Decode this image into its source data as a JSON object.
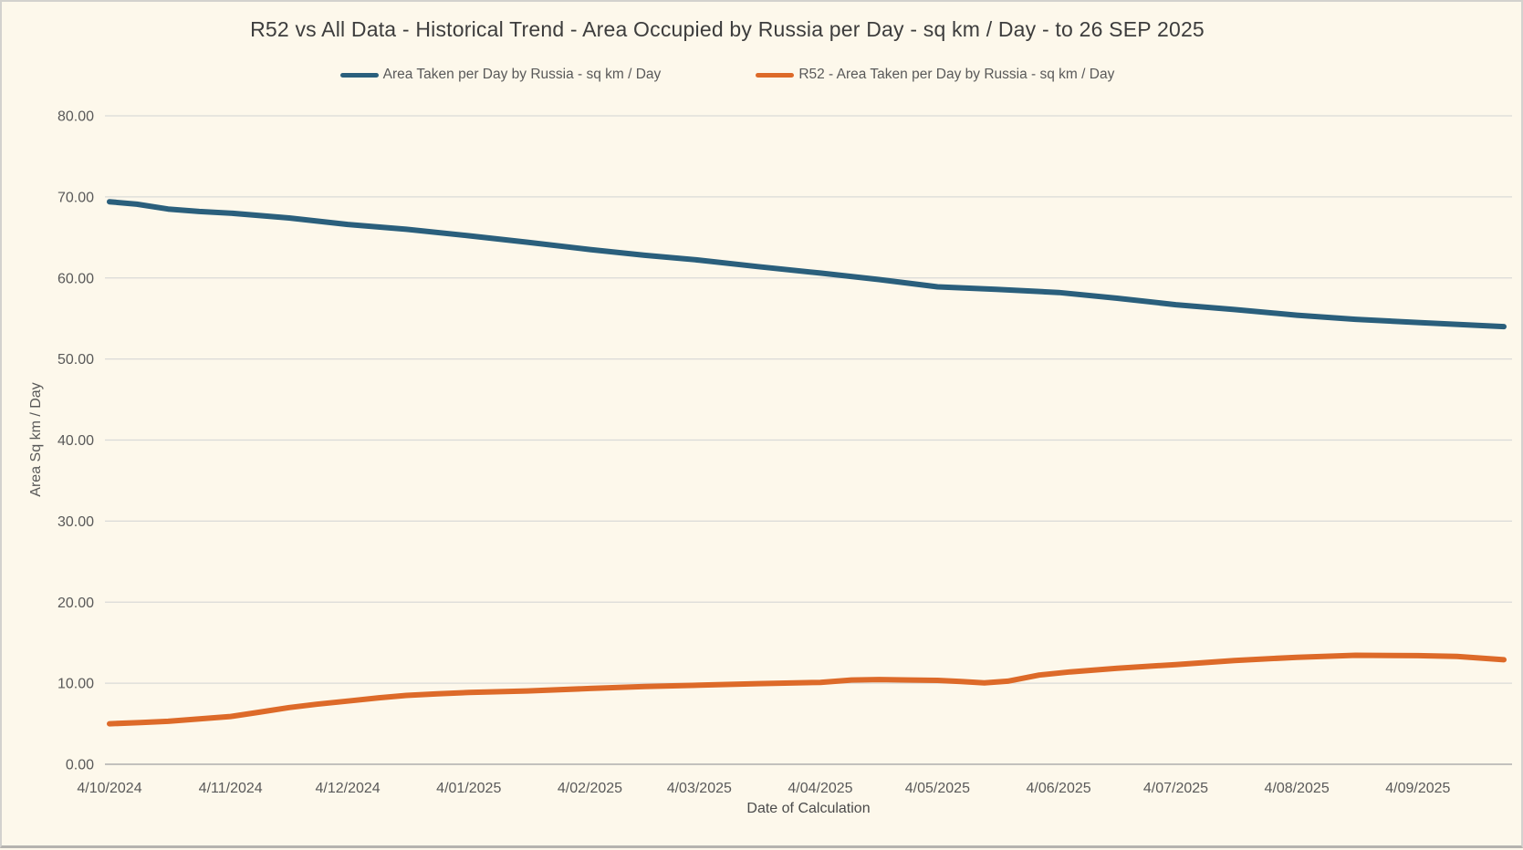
{
  "window": {
    "background_color": "#fdf8eb",
    "border_color": "#d3d2ce"
  },
  "chart_data": {
    "type": "line",
    "title": "R52 vs All Data - Historical Trend - Area Occupied by Russia per Day - sq km / Day - to 26 SEP 2025",
    "xlabel": "Date of Calculation",
    "ylabel": "Area Sq km / Day",
    "ylim": [
      0,
      80
    ],
    "y_tick_step": 10,
    "y_tick_labels": [
      "0.00",
      "10.00",
      "20.00",
      "30.00",
      "40.00",
      "50.00",
      "60.00",
      "70.00",
      "80.00"
    ],
    "grid": "horizontal",
    "legend_position": "top",
    "x_tick_labels": [
      "4/10/2024",
      "4/11/2024",
      "4/12/2024",
      "4/01/2025",
      "4/02/2025",
      "4/03/2025",
      "4/04/2025",
      "4/05/2025",
      "4/06/2025",
      "4/07/2025",
      "4/08/2025",
      "4/09/2025"
    ],
    "x_tick_days": [
      0,
      31,
      61,
      92,
      123,
      151,
      182,
      212,
      243,
      273,
      304,
      335
    ],
    "x_end_day": 357,
    "axis_color": "#c2c1bd",
    "gridline_color": "#dadad8",
    "tick_text_color": "#595959",
    "series": [
      {
        "name": "Area Taken per Day by Russia - sq km / Day",
        "color": "#2a5f7c",
        "points": [
          [
            0,
            69.4
          ],
          [
            7,
            69.1
          ],
          [
            15,
            68.5
          ],
          [
            23,
            68.2
          ],
          [
            31,
            68.0
          ],
          [
            46,
            67.4
          ],
          [
            61,
            66.6
          ],
          [
            76,
            66.0
          ],
          [
            92,
            65.2
          ],
          [
            107,
            64.4
          ],
          [
            123,
            63.5
          ],
          [
            137,
            62.8
          ],
          [
            151,
            62.2
          ],
          [
            166,
            61.4
          ],
          [
            182,
            60.6
          ],
          [
            197,
            59.8
          ],
          [
            212,
            58.9
          ],
          [
            227,
            58.6
          ],
          [
            243,
            58.2
          ],
          [
            258,
            57.5
          ],
          [
            273,
            56.7
          ],
          [
            288,
            56.1
          ],
          [
            304,
            55.4
          ],
          [
            319,
            54.9
          ],
          [
            335,
            54.5
          ],
          [
            357,
            54.0
          ]
        ]
      },
      {
        "name": "R52 - Area Taken per Day by Russia - sq km / Day",
        "color": "#dd6a29",
        "points": [
          [
            0,
            5.0
          ],
          [
            8,
            5.15
          ],
          [
            15,
            5.3
          ],
          [
            23,
            5.6
          ],
          [
            31,
            5.9
          ],
          [
            38,
            6.4
          ],
          [
            46,
            7.0
          ],
          [
            53,
            7.4
          ],
          [
            61,
            7.8
          ],
          [
            69,
            8.2
          ],
          [
            76,
            8.5
          ],
          [
            84,
            8.7
          ],
          [
            92,
            8.85
          ],
          [
            107,
            9.05
          ],
          [
            123,
            9.35
          ],
          [
            137,
            9.6
          ],
          [
            151,
            9.75
          ],
          [
            166,
            9.95
          ],
          [
            182,
            10.1
          ],
          [
            190,
            10.4
          ],
          [
            197,
            10.45
          ],
          [
            205,
            10.4
          ],
          [
            212,
            10.35
          ],
          [
            218,
            10.2
          ],
          [
            224,
            10.05
          ],
          [
            230,
            10.25
          ],
          [
            238,
            11.0
          ],
          [
            246,
            11.4
          ],
          [
            258,
            11.85
          ],
          [
            273,
            12.3
          ],
          [
            288,
            12.8
          ],
          [
            304,
            13.2
          ],
          [
            319,
            13.45
          ],
          [
            335,
            13.4
          ],
          [
            345,
            13.3
          ],
          [
            357,
            12.9
          ]
        ]
      }
    ]
  }
}
